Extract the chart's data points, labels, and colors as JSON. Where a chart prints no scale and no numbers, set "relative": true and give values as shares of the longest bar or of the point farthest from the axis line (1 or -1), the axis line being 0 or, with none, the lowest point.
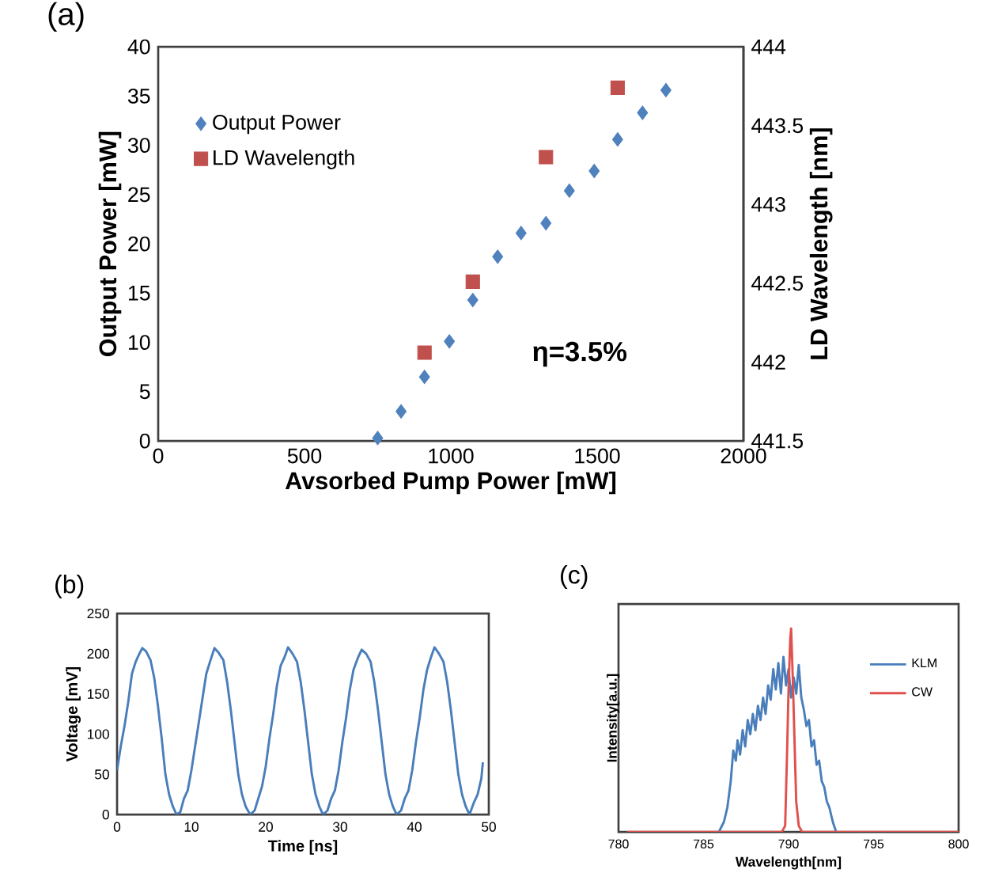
{
  "chart_data": [
    {
      "type": "scatter",
      "title": "(a)",
      "xlabel": "Avsorbed Pump Power [mW]",
      "ylabel": "Output Power [mW]",
      "y2label": "LD Wavelength [nm]",
      "xlim": [
        0,
        2000
      ],
      "xticks": [
        0,
        500,
        1000,
        1500,
        2000
      ],
      "ylim": [
        0,
        40
      ],
      "yticks": [
        0,
        5,
        10,
        15,
        20,
        25,
        30,
        35,
        40
      ],
      "y2lim": [
        441.5,
        444
      ],
      "y2ticks": [
        441.5,
        442,
        442.5,
        443,
        443.5,
        444
      ],
      "legend": "top left",
      "grid": false,
      "annotations": [
        "η=3.5%"
      ],
      "series": [
        {
          "name": "Output Power",
          "color": "#4f81bd",
          "marker": "diamond",
          "x": [
            750,
            830,
            910,
            995,
            1075,
            1160,
            1240,
            1325,
            1405,
            1490,
            1570,
            1655,
            1735
          ],
          "values": [
            0.3,
            3.0,
            6.5,
            10.1,
            14.3,
            18.7,
            21.1,
            22.1,
            25.4,
            27.4,
            30.6,
            33.3,
            35.6
          ]
        },
        {
          "name": "LD Wavelength",
          "color": "#c0504d",
          "marker": "square",
          "axis": "y2",
          "x": [
            910,
            1075,
            1325,
            1570
          ],
          "values": [
            442.06,
            442.51,
            443.3,
            443.74
          ]
        }
      ]
    },
    {
      "type": "line",
      "title": "(b)",
      "xlabel": "Time [ns]",
      "ylabel": "Voltage [mV]",
      "xlim": [
        0,
        50
      ],
      "xticks": [
        0,
        10,
        20,
        30,
        40,
        50
      ],
      "ylim": [
        0,
        250
      ],
      "yticks": [
        0,
        50,
        100,
        150,
        200,
        250
      ],
      "grid": false,
      "series": [
        {
          "color": "#4a7ebb",
          "x": [
            0,
            0.5,
            1,
            1.5,
            2,
            2.5,
            3,
            3.4,
            3.9,
            4.5,
            5,
            5.5,
            6,
            6.5,
            7,
            7.5,
            8,
            8.5,
            9,
            9.5,
            10,
            10.5,
            11,
            11.5,
            12,
            12.5,
            13.1,
            13.6,
            14.3,
            14.8,
            15.3,
            15.8,
            16.3,
            16.8,
            17.3,
            17.9,
            18.5,
            19,
            19.5,
            20,
            20.5,
            21,
            21.5,
            22,
            22.5,
            23,
            23.6,
            24.2,
            24.7,
            25.2,
            25.7,
            26.2,
            26.7,
            27.2,
            27.7,
            28.3,
            28.8,
            29.3,
            29.8,
            30.3,
            30.8,
            31.3,
            31.8,
            32.4,
            32.9,
            33.5,
            34.1,
            34.6,
            35.1,
            35.6,
            36.1,
            36.6,
            37.1,
            37.6,
            38.2,
            38.7,
            39.2,
            39.7,
            40.2,
            40.7,
            41.2,
            41.7,
            42.2,
            42.7,
            43.3,
            43.9,
            44.4,
            44.9,
            45.4,
            45.9,
            46.4,
            46.9,
            47.4,
            48,
            48.5,
            49,
            49.2
          ],
          "values": [
            55,
            85,
            110,
            140,
            175,
            190,
            200,
            207,
            203,
            192,
            170,
            135,
            95,
            50,
            25,
            10,
            0,
            3,
            20,
            30,
            55,
            85,
            115,
            145,
            175,
            190,
            207,
            202,
            192,
            165,
            130,
            90,
            50,
            25,
            10,
            0,
            5,
            20,
            35,
            60,
            95,
            125,
            160,
            185,
            195,
            208,
            200,
            190,
            165,
            130,
            90,
            50,
            25,
            10,
            0,
            5,
            20,
            30,
            55,
            90,
            120,
            155,
            180,
            195,
            205,
            200,
            190,
            165,
            130,
            90,
            50,
            25,
            10,
            0,
            5,
            20,
            30,
            55,
            90,
            120,
            155,
            180,
            195,
            208,
            200,
            190,
            165,
            130,
            90,
            50,
            25,
            10,
            0,
            15,
            25,
            45,
            65
          ]
        }
      ]
    },
    {
      "type": "line",
      "relative": true,
      "xlabel": "Wavelength[nm]",
      "ylabel": "Intensity[a.u.]",
      "title": "(c)",
      "xlim": [
        780,
        800
      ],
      "xticks": [
        780,
        785,
        790,
        795,
        800
      ],
      "legend": "top right",
      "grid": false,
      "series": [
        {
          "name": "KLM",
          "color": "#4a7ebb",
          "x": [
            785.9,
            786.2,
            786.4,
            786.6,
            786.75,
            786.9,
            787.0,
            787.15,
            787.3,
            787.45,
            787.6,
            787.75,
            787.9,
            788.05,
            788.2,
            788.35,
            788.5,
            788.65,
            788.8,
            788.95,
            789.1,
            789.25,
            789.4,
            789.55,
            789.7,
            789.85,
            790.0,
            790.15,
            790.3,
            790.45,
            790.6,
            790.75,
            790.9,
            791.05,
            791.2,
            791.35,
            791.5,
            791.65,
            791.8,
            791.95,
            792.1,
            792.25,
            792.4,
            792.6,
            792.8
          ],
          "values": [
            0,
            0.05,
            0.12,
            0.25,
            0.4,
            0.35,
            0.45,
            0.38,
            0.5,
            0.42,
            0.55,
            0.48,
            0.58,
            0.5,
            0.62,
            0.55,
            0.66,
            0.58,
            0.72,
            0.65,
            0.8,
            0.7,
            0.83,
            0.68,
            0.86,
            0.72,
            0.8,
            0.66,
            0.76,
            0.68,
            0.82,
            0.66,
            0.6,
            0.52,
            0.55,
            0.42,
            0.45,
            0.33,
            0.35,
            0.25,
            0.22,
            0.15,
            0.12,
            0.05,
            0
          ]
        },
        {
          "name": "CW",
          "color": "#e0504d",
          "x": [
            780.5,
            789.6,
            789.8,
            789.9,
            790.0,
            790.1,
            790.15,
            790.25,
            790.35,
            790.45,
            790.6,
            790.8,
            800
          ],
          "values": [
            0,
            0,
            0.03,
            0.35,
            0.7,
            0.95,
            1,
            0.75,
            0.45,
            0.15,
            0.03,
            0,
            0
          ]
        }
      ]
    }
  ]
}
